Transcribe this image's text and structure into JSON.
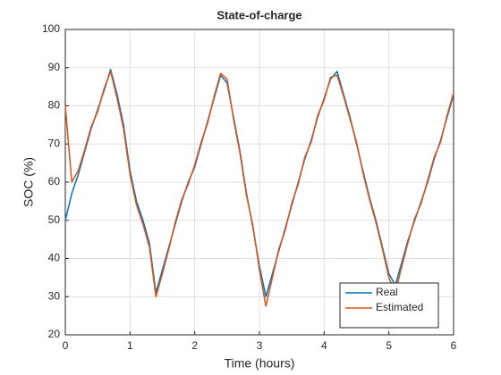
{
  "chart_data": {
    "type": "line",
    "title": "State-of-charge",
    "xlabel": "Time (hours)",
    "ylabel": "SOC (%)",
    "x": [
      0,
      0.1,
      0.2,
      0.3,
      0.4,
      0.5,
      0.6,
      0.7,
      0.8,
      0.9,
      1,
      1.1,
      1.2,
      1.3,
      1.4,
      1.5,
      1.6,
      1.7,
      1.8,
      1.9,
      2,
      2.1,
      2.2,
      2.3,
      2.4,
      2.5,
      2.6,
      2.7,
      2.8,
      2.9,
      3,
      3.1,
      3.2,
      3.3,
      3.4,
      3.5,
      3.6,
      3.7,
      3.8,
      3.9,
      4,
      4.1,
      4.2,
      4.3,
      4.4,
      4.5,
      4.6,
      4.7,
      4.8,
      4.9,
      5,
      5.1,
      5.2,
      5.3,
      5.4,
      5.5,
      5.6,
      5.7,
      5.8,
      5.9,
      6
    ],
    "series": [
      {
        "name": "Real",
        "color": "#0072BD",
        "values": [
          50,
          57,
          62,
          68,
          74,
          79,
          84,
          89.5,
          83,
          75,
          63,
          55,
          50,
          44,
          31,
          37,
          43,
          49,
          55,
          60,
          64,
          70,
          76,
          82,
          88,
          86,
          77,
          68,
          57,
          48,
          38,
          30,
          36,
          42,
          48,
          54,
          60,
          66,
          71,
          77,
          82,
          87,
          89,
          83,
          77,
          70,
          63,
          56,
          50,
          43,
          36,
          33,
          39,
          45,
          50,
          55,
          60,
          66,
          71,
          77,
          83
        ]
      },
      {
        "name": "Estimated",
        "color": "#D95319",
        "values": [
          80,
          60,
          63,
          68.5,
          74.5,
          78.5,
          84.5,
          89,
          82,
          74,
          62,
          54,
          49,
          43,
          30,
          36,
          42.5,
          49.5,
          55.5,
          59.5,
          64.5,
          70.5,
          75.5,
          82.5,
          88.5,
          87,
          76.5,
          67.5,
          56.5,
          48.5,
          37,
          27.5,
          35,
          42.5,
          47.5,
          54.5,
          59.5,
          66.5,
          70.5,
          77.5,
          81.5,
          87.5,
          88,
          82.5,
          76.5,
          70.5,
          62.5,
          55.5,
          49.5,
          42.5,
          35,
          31,
          38,
          44.5,
          50.5,
          54.5,
          60.5,
          66.5,
          70.5,
          77.5,
          83.5
        ]
      }
    ],
    "xlim": [
      0,
      6
    ],
    "xticks": [
      0,
      1,
      2,
      3,
      4,
      5,
      6
    ],
    "ylim": [
      20,
      100
    ],
    "yticks": [
      20,
      30,
      40,
      50,
      60,
      70,
      80,
      90,
      100
    ],
    "grid": true,
    "legend": "southeast"
  }
}
